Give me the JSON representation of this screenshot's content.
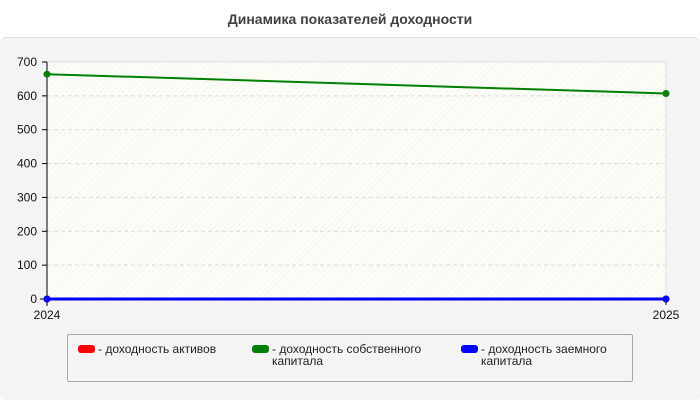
{
  "chart_data": {
    "type": "line",
    "title": "Динамика показателей доходности",
    "categories": [
      "2024",
      "2025"
    ],
    "yticks": [
      "0",
      "100",
      "200",
      "300",
      "400",
      "500",
      "600",
      "700"
    ],
    "ylim": [
      0,
      700
    ],
    "grid": true,
    "legend_position": "bottom",
    "series": [
      {
        "name": "- доходность активов",
        "color": "#ff0000",
        "values": [
          0,
          0
        ]
      },
      {
        "name": "- доходность собственного капитала",
        "color": "#008000",
        "values": [
          664,
          607
        ]
      },
      {
        "name": "- доходность заемного капитала",
        "color": "#0000ff",
        "values": [
          0,
          0
        ]
      }
    ]
  }
}
